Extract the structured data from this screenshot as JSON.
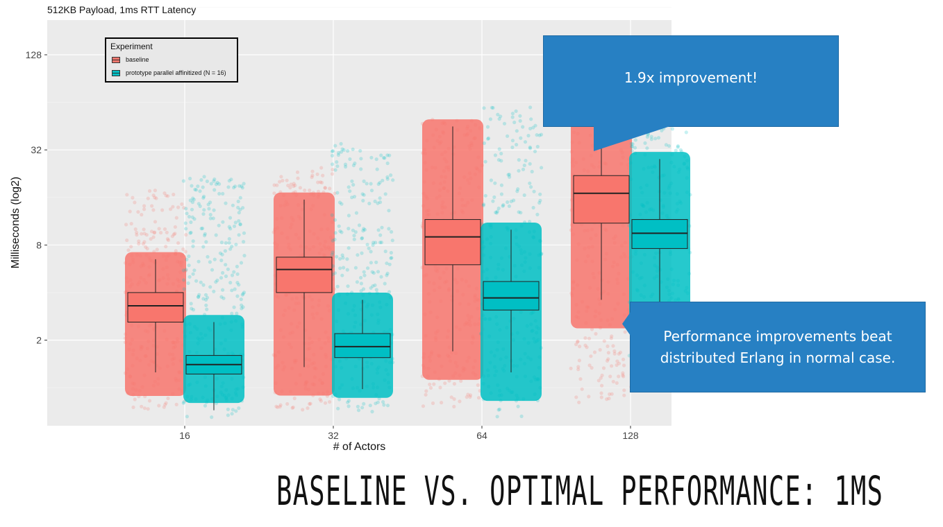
{
  "slide": {
    "title": "BASELINE VS. OPTIMAL PERFORMANCE: 1MS",
    "callouts": [
      {
        "text": "1.9x improvement!"
      },
      {
        "text": "Performance improvements beat distributed Erlang in normal case."
      }
    ]
  },
  "chart_data": {
    "type": "box",
    "subtitle": "512KB Payload, 1ms RTT Latency",
    "xlabel": "# of Actors",
    "ylabel": "Milliseconds (log2)",
    "y_scale": "log2",
    "ylim": [
      0.5,
      200
    ],
    "yticks": [
      2,
      8,
      32,
      128
    ],
    "ytick_labels": [
      "2",
      "8",
      "32",
      "128"
    ],
    "categories": [
      "16",
      "32",
      "64",
      "128"
    ],
    "grid": true,
    "legend": {
      "title": "Experiment",
      "position": "top-left"
    },
    "series": [
      {
        "name": "baseline",
        "color": "#f8766d",
        "boxes": [
          {
            "whisker_low": 1.25,
            "q1": 2.6,
            "median": 3.3,
            "q3": 4.0,
            "whisker_high": 6.5,
            "points_low": 0.72,
            "points_high": 18
          },
          {
            "whisker_low": 1.35,
            "q1": 4.0,
            "median": 5.6,
            "q3": 6.7,
            "whisker_high": 15.5,
            "points_low": 0.72,
            "points_high": 25
          },
          {
            "whisker_low": 1.7,
            "q1": 6.0,
            "median": 9.0,
            "q3": 11.6,
            "whisker_high": 45,
            "points_low": 0.75,
            "points_high": 50
          },
          {
            "whisker_low": 3.6,
            "q1": 11.0,
            "median": 17.0,
            "q3": 22.0,
            "whisker_high": 90,
            "points_low": 0.8,
            "points_high": 95
          }
        ]
      },
      {
        "name": "prototype parallel affinitized (N = 16)",
        "color": "#00bfc4",
        "boxes": [
          {
            "whisker_low": 0.72,
            "q1": 1.22,
            "median": 1.4,
            "q3": 1.6,
            "whisker_high": 2.6,
            "points_low": 0.65,
            "points_high": 22
          },
          {
            "whisker_low": 0.98,
            "q1": 1.55,
            "median": 1.82,
            "q3": 2.2,
            "whisker_high": 3.6,
            "points_low": 0.7,
            "points_high": 35
          },
          {
            "whisker_low": 1.25,
            "q1": 3.1,
            "median": 3.7,
            "q3": 4.7,
            "whisker_high": 10.0,
            "points_low": 0.65,
            "points_high": 60
          },
          {
            "whisker_low": 3.3,
            "q1": 7.6,
            "median": 9.5,
            "q3": 11.6,
            "whisker_high": 28,
            "points_low": 1.1,
            "points_high": 45
          }
        ]
      }
    ]
  }
}
